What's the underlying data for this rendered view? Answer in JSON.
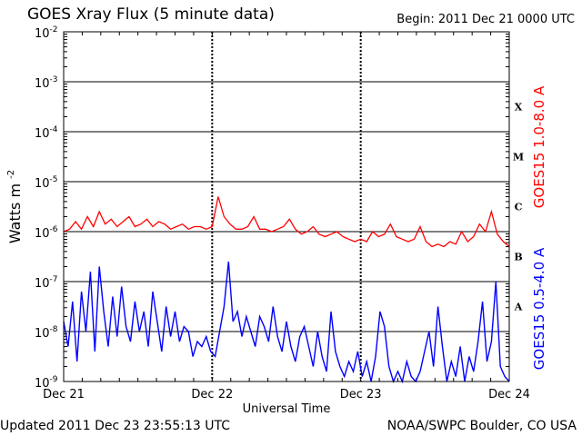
{
  "header": {
    "title": "GOES Xray Flux (5 minute data)",
    "begin": "Begin:  2011 Dec 21 0000 UTC"
  },
  "footer": {
    "updated": "Updated 2011 Dec 23 23:55:13 UTC",
    "credit": "NOAA/SWPC Boulder, CO USA"
  },
  "chart_data": {
    "type": "line",
    "title": "GOES Xray Flux (5 minute data)",
    "xlabel": "Universal Time",
    "ylabel": "Watts m",
    "ylabel_sup": "-2",
    "y_scale": "log",
    "ylim_exponent": [
      -9,
      -2
    ],
    "y_ticks": [
      {
        "mant": "10",
        "exp": "-2",
        "e": -2
      },
      {
        "mant": "10",
        "exp": "-3",
        "e": -3
      },
      {
        "mant": "10",
        "exp": "-4",
        "e": -4
      },
      {
        "mant": "10",
        "exp": "-5",
        "e": -5
      },
      {
        "mant": "10",
        "exp": "-6",
        "e": -6
      },
      {
        "mant": "10",
        "exp": "-7",
        "e": -7
      },
      {
        "mant": "10",
        "exp": "-8",
        "e": -8
      },
      {
        "mant": "10",
        "exp": "-9",
        "e": -9
      }
    ],
    "x_ticks": [
      {
        "label": "Dec 21",
        "day": 0
      },
      {
        "label": "Dec 22",
        "day": 1
      },
      {
        "label": "Dec 23",
        "day": 2
      },
      {
        "label": "Dec 24",
        "day": 3
      }
    ],
    "flare_classes": [
      {
        "label": "X",
        "e": -3.5
      },
      {
        "label": "M",
        "e": -4.5
      },
      {
        "label": "C",
        "e": -5.5
      },
      {
        "label": "B",
        "e": -6.5
      },
      {
        "label": "A",
        "e": -7.5
      }
    ],
    "grid": true,
    "series": [
      {
        "name": "GOES15 1.0-8.0 A",
        "color": "#ff0000",
        "x": [
          0,
          0.04,
          0.08,
          0.12,
          0.16,
          0.2,
          0.24,
          0.28,
          0.32,
          0.36,
          0.4,
          0.44,
          0.48,
          0.52,
          0.56,
          0.6,
          0.64,
          0.68,
          0.72,
          0.76,
          0.8,
          0.84,
          0.88,
          0.92,
          0.96,
          1.0,
          1.04,
          1.08,
          1.12,
          1.16,
          1.2,
          1.24,
          1.28,
          1.32,
          1.36,
          1.4,
          1.44,
          1.48,
          1.52,
          1.56,
          1.6,
          1.64,
          1.68,
          1.72,
          1.76,
          1.8,
          1.84,
          1.88,
          1.92,
          1.96,
          2.0,
          2.04,
          2.08,
          2.12,
          2.16,
          2.2,
          2.24,
          2.28,
          2.32,
          2.36,
          2.4,
          2.44,
          2.48,
          2.52,
          2.56,
          2.6,
          2.64,
          2.68,
          2.72,
          2.76,
          2.8,
          2.84,
          2.88,
          2.92,
          2.96,
          3.0
        ],
        "log_y": [
          -6.0,
          -5.95,
          -5.8,
          -5.95,
          -5.7,
          -5.9,
          -5.6,
          -5.85,
          -5.75,
          -5.9,
          -5.8,
          -5.7,
          -5.9,
          -5.85,
          -5.75,
          -5.9,
          -5.8,
          -5.85,
          -5.95,
          -5.9,
          -5.85,
          -5.95,
          -5.9,
          -5.9,
          -5.95,
          -5.9,
          -5.3,
          -5.7,
          -5.85,
          -5.95,
          -5.95,
          -5.9,
          -5.7,
          -5.95,
          -5.95,
          -6.0,
          -5.95,
          -5.9,
          -5.75,
          -5.95,
          -6.05,
          -6.0,
          -5.9,
          -6.05,
          -6.1,
          -6.05,
          -6.0,
          -6.1,
          -6.15,
          -6.2,
          -6.15,
          -6.2,
          -6.0,
          -6.1,
          -6.05,
          -5.85,
          -6.1,
          -6.15,
          -6.2,
          -6.15,
          -5.9,
          -6.2,
          -6.3,
          -6.25,
          -6.3,
          -6.2,
          -6.25,
          -6.0,
          -6.2,
          -6.1,
          -5.85,
          -6.0,
          -5.6,
          -6.05,
          -6.2,
          -6.3
        ]
      },
      {
        "name": "GOES15 0.5-4.0 A",
        "color": "#0000ff",
        "x": [
          0,
          0.03,
          0.06,
          0.09,
          0.12,
          0.15,
          0.18,
          0.21,
          0.24,
          0.27,
          0.3,
          0.33,
          0.36,
          0.39,
          0.42,
          0.45,
          0.48,
          0.51,
          0.54,
          0.57,
          0.6,
          0.63,
          0.66,
          0.69,
          0.72,
          0.75,
          0.78,
          0.81,
          0.84,
          0.87,
          0.9,
          0.93,
          0.96,
          0.99,
          1.02,
          1.05,
          1.08,
          1.11,
          1.14,
          1.17,
          1.2,
          1.23,
          1.26,
          1.29,
          1.32,
          1.35,
          1.38,
          1.41,
          1.44,
          1.47,
          1.5,
          1.53,
          1.56,
          1.59,
          1.62,
          1.65,
          1.68,
          1.71,
          1.74,
          1.77,
          1.8,
          1.83,
          1.86,
          1.89,
          1.92,
          1.95,
          1.98,
          2.01,
          2.04,
          2.07,
          2.1,
          2.13,
          2.16,
          2.19,
          2.22,
          2.25,
          2.28,
          2.31,
          2.34,
          2.37,
          2.4,
          2.43,
          2.46,
          2.49,
          2.52,
          2.55,
          2.58,
          2.61,
          2.64,
          2.67,
          2.7,
          2.73,
          2.76,
          2.79,
          2.82,
          2.85,
          2.88,
          2.91,
          2.94,
          2.97,
          3.0
        ],
        "log_y": [
          -7.8,
          -8.3,
          -7.4,
          -8.6,
          -7.2,
          -8.0,
          -6.8,
          -8.4,
          -6.7,
          -7.6,
          -8.3,
          -7.3,
          -8.1,
          -7.1,
          -7.9,
          -8.2,
          -7.4,
          -8.0,
          -7.6,
          -8.3,
          -7.2,
          -7.8,
          -8.4,
          -7.5,
          -8.1,
          -7.6,
          -8.2,
          -7.9,
          -8.0,
          -8.5,
          -8.2,
          -8.3,
          -8.1,
          -8.4,
          -8.5,
          -8.0,
          -7.5,
          -6.6,
          -7.8,
          -7.6,
          -8.1,
          -7.7,
          -8.0,
          -8.3,
          -7.7,
          -7.9,
          -8.2,
          -7.5,
          -8.1,
          -8.4,
          -7.8,
          -8.3,
          -8.6,
          -8.1,
          -7.9,
          -8.3,
          -8.7,
          -8.0,
          -8.5,
          -8.8,
          -7.6,
          -8.4,
          -8.7,
          -8.9,
          -8.6,
          -8.8,
          -8.4,
          -8.9,
          -8.6,
          -9.0,
          -8.5,
          -7.6,
          -7.9,
          -8.7,
          -9.0,
          -8.8,
          -9.0,
          -8.6,
          -8.9,
          -9.0,
          -8.8,
          -8.4,
          -8.0,
          -8.7,
          -7.5,
          -8.3,
          -9.0,
          -8.6,
          -8.9,
          -8.3,
          -9.0,
          -8.5,
          -8.8,
          -8.2,
          -7.4,
          -8.6,
          -8.2,
          -7.0,
          -8.7,
          -8.9,
          -9.0
        ]
      }
    ]
  }
}
